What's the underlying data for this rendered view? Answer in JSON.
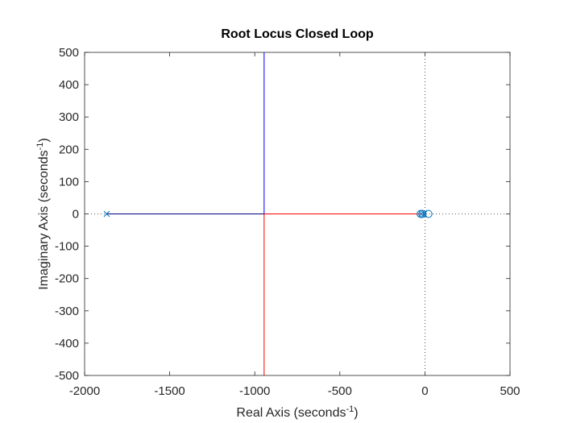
{
  "chart_data": {
    "type": "line",
    "title": "Root Locus Closed Loop",
    "xlabel": {
      "base": "Real Axis (seconds",
      "sup": "-1",
      "tail": ")"
    },
    "ylabel": {
      "base": "Imaginary Axis (seconds",
      "sup": "-1",
      "tail": ")"
    },
    "xlim": [
      -2000,
      500
    ],
    "ylim": [
      -500,
      500
    ],
    "xticks": [
      -2000,
      -1500,
      -1000,
      -500,
      0,
      500
    ],
    "xtick_labels": [
      "-2000",
      "-1500",
      "-1000",
      "-500",
      "0",
      "500"
    ],
    "yticks": [
      -500,
      -400,
      -300,
      -200,
      -100,
      0,
      100,
      200,
      300,
      400,
      500
    ],
    "ytick_labels": [
      "-500",
      "-400",
      "-300",
      "-200",
      "-100",
      "0",
      "100",
      "200",
      "300",
      "400",
      "500"
    ],
    "grid": false,
    "reference_lines": {
      "x": 0,
      "y": 0,
      "style": "dotted"
    },
    "series": [
      {
        "color": "#000080",
        "points": [
          [
            -1870,
            0
          ],
          [
            -945,
            0
          ]
        ]
      },
      {
        "color": "#FF0000",
        "points": [
          [
            -945,
            0
          ],
          [
            -945,
            -500
          ]
        ]
      },
      {
        "color": "#0000FF",
        "points": [
          [
            -945,
            0
          ],
          [
            -945,
            500
          ]
        ]
      },
      {
        "color": "#FF0000",
        "points": [
          [
            -945,
            0
          ],
          [
            -25,
            0
          ]
        ]
      }
    ],
    "poles": [
      {
        "x": -1870,
        "y": 0
      },
      {
        "x": -20,
        "y": 0
      },
      {
        "x": -5,
        "y": 0
      }
    ],
    "zeros": [
      {
        "x": -25,
        "y": 0
      },
      {
        "x": -15,
        "y": 0
      },
      {
        "x": 20,
        "y": 0
      }
    ],
    "marker_color": "#0072BD"
  }
}
